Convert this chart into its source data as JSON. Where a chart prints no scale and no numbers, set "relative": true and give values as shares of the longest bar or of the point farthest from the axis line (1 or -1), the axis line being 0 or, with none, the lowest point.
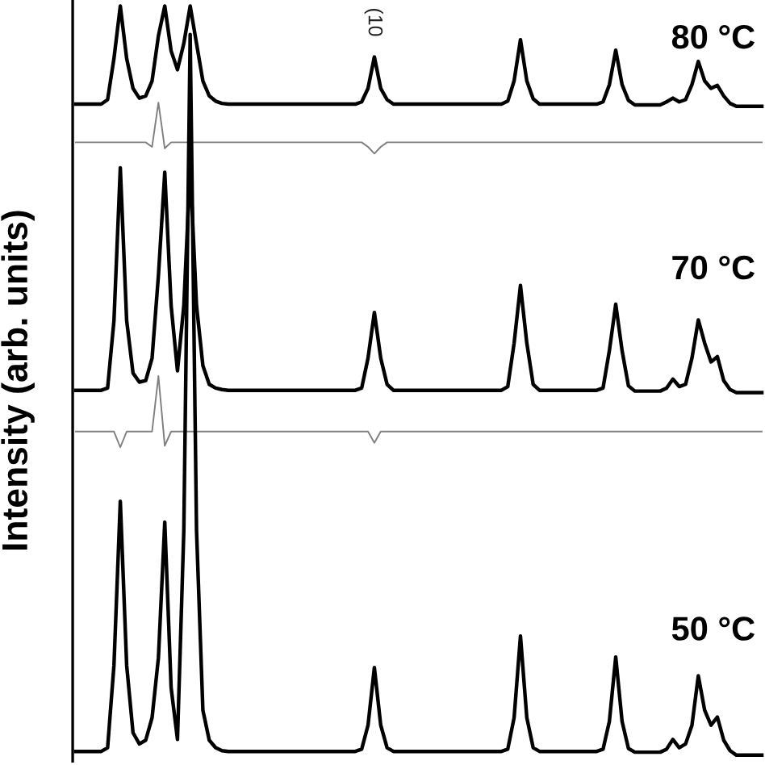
{
  "chart_data": {
    "type": "line",
    "relative": true,
    "ylabel": "Intensity (arb. units)",
    "categories": [
      null,
      null,
      null,
      null,
      null,
      null,
      null,
      null,
      null,
      null,
      null,
      null,
      null,
      null,
      null,
      null,
      null,
      null,
      null,
      null,
      null,
      null,
      null,
      null,
      null,
      null,
      null,
      null,
      null,
      null,
      null,
      null,
      null,
      null,
      null,
      null,
      null,
      null,
      null,
      null,
      null,
      null,
      null,
      null,
      null,
      null,
      null,
      null,
      null,
      null,
      null,
      null,
      null,
      null,
      null,
      null,
      null,
      null,
      null,
      null,
      null,
      null,
      null,
      null,
      null,
      null,
      null,
      null,
      null,
      null,
      null,
      null,
      null,
      null,
      null,
      null,
      null,
      null,
      null,
      null,
      null,
      null,
      null,
      null,
      null,
      null,
      null,
      null,
      null,
      null,
      null,
      null,
      null,
      null,
      null,
      null,
      null,
      null,
      null,
      null,
      null,
      null,
      null,
      null,
      null,
      null,
      null,
      null,
      null
    ],
    "annotations": [
      "(10"
    ],
    "series": [
      {
        "name": "80 °C",
        "color": "#000000",
        "values": [
          0.869,
          0.869,
          0.869,
          0.869,
          0.869,
          0.875,
          0.93,
          1.0,
          0.93,
          0.89,
          0.877,
          0.88,
          0.9,
          0.96,
          1.0,
          0.94,
          0.915,
          0.95,
          1.0,
          0.95,
          0.9,
          0.88,
          0.873,
          0.87,
          0.869,
          0.869,
          0.869,
          0.869,
          0.869,
          0.869,
          0.869,
          0.869,
          0.869,
          0.869,
          0.869,
          0.869,
          0.869,
          0.869,
          0.869,
          0.869,
          0.869,
          0.869,
          0.869,
          0.869,
          0.869,
          0.872,
          0.89,
          0.932,
          0.89,
          0.875,
          0.869,
          0.869,
          0.869,
          0.869,
          0.869,
          0.869,
          0.869,
          0.869,
          0.869,
          0.869,
          0.869,
          0.869,
          0.869,
          0.869,
          0.869,
          0.869,
          0.869,
          0.869,
          0.873,
          0.9,
          0.955,
          0.9,
          0.876,
          0.869,
          0.869,
          0.869,
          0.869,
          0.869,
          0.869,
          0.869,
          0.869,
          0.869,
          0.869,
          0.872,
          0.895,
          0.941,
          0.895,
          0.874,
          0.868,
          0.868,
          0.868,
          0.868,
          0.868,
          0.872,
          0.877,
          0.872,
          0.875,
          0.895,
          0.926,
          0.9,
          0.89,
          0.894,
          0.88,
          0.87,
          0.866,
          0.866,
          0.866,
          0.866,
          0.866
        ]
      },
      {
        "color": "#808080",
        "values": [
          0.818,
          0.818,
          0.818,
          0.818,
          0.818,
          0.818,
          0.818,
          0.818,
          0.818,
          0.818,
          0.818,
          0.818,
          0.812,
          0.871,
          0.81,
          0.818,
          0.818,
          0.818,
          0.818,
          0.818,
          0.818,
          0.818,
          0.818,
          0.818,
          0.818,
          0.818,
          0.818,
          0.818,
          0.818,
          0.818,
          0.818,
          0.818,
          0.818,
          0.818,
          0.818,
          0.818,
          0.818,
          0.818,
          0.818,
          0.818,
          0.818,
          0.818,
          0.818,
          0.818,
          0.818,
          0.818,
          0.812,
          0.803,
          0.812,
          0.818,
          0.818,
          0.818,
          0.818,
          0.818,
          0.818,
          0.818,
          0.818,
          0.818,
          0.818,
          0.818,
          0.818,
          0.818,
          0.818,
          0.818,
          0.818,
          0.818,
          0.818,
          0.818,
          0.818,
          0.818,
          0.818,
          0.818,
          0.818,
          0.818,
          0.818,
          0.818,
          0.818,
          0.818,
          0.818,
          0.818,
          0.818,
          0.818,
          0.818,
          0.818,
          0.818,
          0.818,
          0.818,
          0.818,
          0.818,
          0.818,
          0.818,
          0.818,
          0.818,
          0.818,
          0.818,
          0.818,
          0.818,
          0.818,
          0.818,
          0.818,
          0.818,
          0.818,
          0.818,
          0.818,
          0.818,
          0.818,
          0.818,
          0.818,
          0.818
        ]
      },
      {
        "name": "70 °C",
        "color": "#000000",
        "values": [
          0.487,
          0.487,
          0.487,
          0.487,
          0.487,
          0.49,
          0.58,
          0.784,
          0.58,
          0.51,
          0.498,
          0.5,
          0.53,
          0.64,
          0.778,
          0.6,
          0.513,
          0.6,
          0.784,
          0.6,
          0.52,
          0.495,
          0.49,
          0.488,
          0.487,
          0.487,
          0.487,
          0.487,
          0.487,
          0.487,
          0.487,
          0.487,
          0.487,
          0.487,
          0.487,
          0.487,
          0.487,
          0.487,
          0.487,
          0.487,
          0.487,
          0.487,
          0.487,
          0.487,
          0.487,
          0.49,
          0.53,
          0.591,
          0.53,
          0.495,
          0.487,
          0.487,
          0.487,
          0.487,
          0.487,
          0.487,
          0.487,
          0.487,
          0.487,
          0.487,
          0.487,
          0.487,
          0.487,
          0.487,
          0.487,
          0.487,
          0.487,
          0.487,
          0.492,
          0.55,
          0.627,
          0.55,
          0.495,
          0.487,
          0.487,
          0.487,
          0.487,
          0.487,
          0.487,
          0.487,
          0.487,
          0.487,
          0.487,
          0.49,
          0.54,
          0.602,
          0.54,
          0.493,
          0.486,
          0.486,
          0.486,
          0.486,
          0.486,
          0.49,
          0.502,
          0.492,
          0.495,
          0.53,
          0.581,
          0.55,
          0.525,
          0.532,
          0.5,
          0.488,
          0.484,
          0.484,
          0.484,
          0.484,
          0.484
        ]
      },
      {
        "color": "#808080",
        "values": [
          0.432,
          0.432,
          0.432,
          0.432,
          0.432,
          0.432,
          0.432,
          0.411,
          0.432,
          0.432,
          0.432,
          0.432,
          0.432,
          0.506,
          0.413,
          0.432,
          0.432,
          0.432,
          0.432,
          0.432,
          0.432,
          0.432,
          0.432,
          0.432,
          0.432,
          0.432,
          0.432,
          0.432,
          0.432,
          0.432,
          0.432,
          0.432,
          0.432,
          0.432,
          0.432,
          0.432,
          0.432,
          0.432,
          0.432,
          0.432,
          0.432,
          0.432,
          0.432,
          0.432,
          0.432,
          0.432,
          0.432,
          0.417,
          0.432,
          0.432,
          0.432,
          0.432,
          0.432,
          0.432,
          0.432,
          0.432,
          0.432,
          0.432,
          0.432,
          0.432,
          0.432,
          0.432,
          0.432,
          0.432,
          0.432,
          0.432,
          0.432,
          0.432,
          0.432,
          0.432,
          0.432,
          0.432,
          0.432,
          0.432,
          0.432,
          0.432,
          0.432,
          0.432,
          0.432,
          0.432,
          0.432,
          0.432,
          0.432,
          0.432,
          0.432,
          0.432,
          0.432,
          0.432,
          0.432,
          0.432,
          0.432,
          0.432,
          0.432,
          0.432,
          0.432,
          0.432,
          0.432,
          0.432,
          0.432,
          0.432,
          0.432,
          0.432,
          0.432,
          0.432,
          0.432,
          0.432,
          0.432,
          0.432,
          0.432
        ]
      },
      {
        "name": "50 °C",
        "color": "#000000",
        "values": [
          0.005,
          0.005,
          0.005,
          0.005,
          0.005,
          0.01,
          0.12,
          0.339,
          0.12,
          0.03,
          0.015,
          0.02,
          0.05,
          0.13,
          0.311,
          0.09,
          0.021,
          0.3,
          0.962,
          0.3,
          0.06,
          0.02,
          0.01,
          0.006,
          0.005,
          0.005,
          0.005,
          0.005,
          0.005,
          0.005,
          0.005,
          0.005,
          0.005,
          0.005,
          0.005,
          0.005,
          0.005,
          0.005,
          0.005,
          0.005,
          0.005,
          0.005,
          0.005,
          0.005,
          0.005,
          0.008,
          0.04,
          0.117,
          0.04,
          0.01,
          0.005,
          0.005,
          0.005,
          0.005,
          0.005,
          0.005,
          0.005,
          0.005,
          0.005,
          0.005,
          0.005,
          0.005,
          0.005,
          0.005,
          0.005,
          0.005,
          0.005,
          0.005,
          0.008,
          0.05,
          0.159,
          0.05,
          0.01,
          0.005,
          0.005,
          0.005,
          0.005,
          0.005,
          0.005,
          0.005,
          0.005,
          0.005,
          0.005,
          0.008,
          0.045,
          0.131,
          0.045,
          0.009,
          0.004,
          0.004,
          0.004,
          0.004,
          0.004,
          0.008,
          0.021,
          0.01,
          0.015,
          0.04,
          0.106,
          0.06,
          0.04,
          0.051,
          0.02,
          0.006,
          0.0,
          0.0,
          0.0,
          0.0,
          0.0
        ]
      }
    ]
  }
}
